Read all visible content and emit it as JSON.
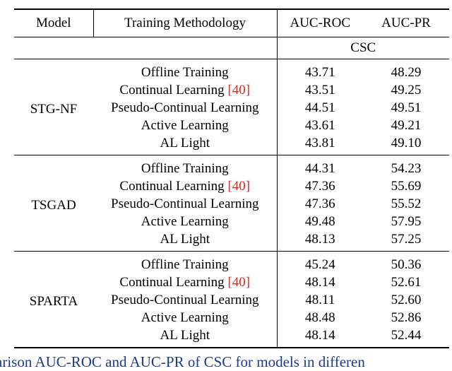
{
  "table": {
    "headers": {
      "model": "Model",
      "method": "Training Methodology",
      "auc_roc": "AUC-ROC",
      "auc_pr": "AUC-PR"
    },
    "subheader": "CSC",
    "groups": [
      {
        "model": "STG-NF",
        "rows": [
          {
            "method": "Offline Training",
            "cite": "",
            "roc": "43.71",
            "pr": "48.29",
            "roc_bold": false,
            "pr_bold": false
          },
          {
            "method": "Continual Learning ",
            "cite": "[40]",
            "roc": "43.51",
            "pr": "49.25",
            "roc_bold": false,
            "pr_bold": false
          },
          {
            "method": "Pseudo-Continual Learning",
            "cite": "",
            "roc": "44.51",
            "pr": "49.51",
            "roc_bold": true,
            "pr_bold": true
          },
          {
            "method": "Active Learning",
            "cite": "",
            "roc": "43.61",
            "pr": "49.21",
            "roc_bold": false,
            "pr_bold": false
          },
          {
            "method": "AL Light",
            "cite": "",
            "roc": "43.81",
            "pr": "49.10",
            "roc_bold": false,
            "pr_bold": false
          }
        ]
      },
      {
        "model": "TSGAD",
        "rows": [
          {
            "method": "Offline Training",
            "cite": "",
            "roc": "44.31",
            "pr": "54.23",
            "roc_bold": false,
            "pr_bold": false
          },
          {
            "method": "Continual Learning ",
            "cite": "[40]",
            "roc": "47.36",
            "pr": "55.69",
            "roc_bold": false,
            "pr_bold": false
          },
          {
            "method": "Pseudo-Continual Learning",
            "cite": "",
            "roc": "47.36",
            "pr": "55.52",
            "roc_bold": false,
            "pr_bold": false
          },
          {
            "method": "Active Learning",
            "cite": "",
            "roc": "49.48",
            "pr": "57.95",
            "roc_bold": true,
            "pr_bold": true
          },
          {
            "method": "AL Light",
            "cite": "",
            "roc": "48.13",
            "pr": "57.25",
            "roc_bold": false,
            "pr_bold": false
          }
        ]
      },
      {
        "model": "SPARTA",
        "rows": [
          {
            "method": "Offline Training",
            "cite": "",
            "roc": "45.24",
            "pr": "50.36",
            "roc_bold": false,
            "pr_bold": false
          },
          {
            "method": "Continual Learning ",
            "cite": "[40]",
            "roc": "48.14",
            "pr": "52.61",
            "roc_bold": false,
            "pr_bold": false
          },
          {
            "method": "Pseudo-Continual Learning",
            "cite": "",
            "roc": "48.11",
            "pr": "52.60",
            "roc_bold": false,
            "pr_bold": false
          },
          {
            "method": "Active Learning",
            "cite": "",
            "roc": "48.48",
            "pr": "52.86",
            "roc_bold": true,
            "pr_bold": true
          },
          {
            "method": "AL Light",
            "cite": "",
            "roc": "48.14",
            "pr": "52.44",
            "roc_bold": false,
            "pr_bold": false
          }
        ]
      }
    ]
  },
  "caption": "arison AUC-ROC and AUC-PR of CSC for models in differen"
}
